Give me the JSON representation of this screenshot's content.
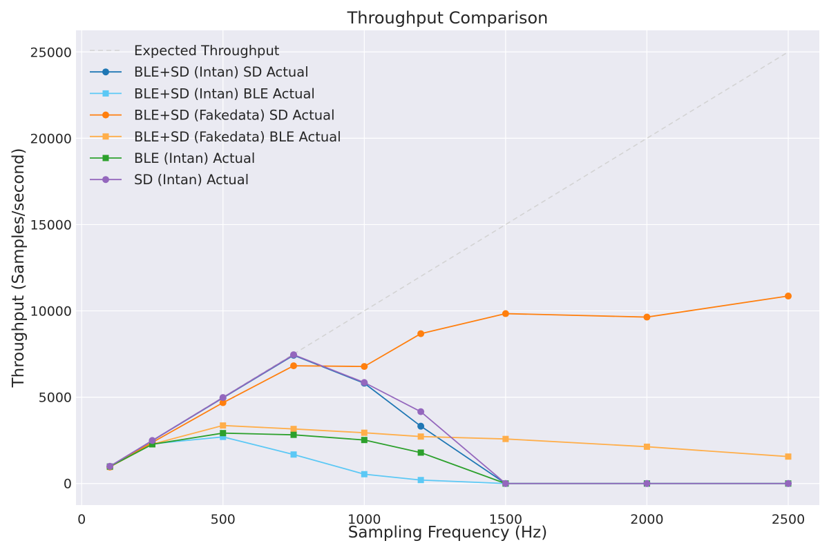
{
  "chart_data": {
    "type": "line",
    "title": "Throughput Comparison",
    "xlabel": "Sampling Frequency (Hz)",
    "ylabel": "Throughput (Samples/second)",
    "xlim": [
      -20,
      2610
    ],
    "ylim": [
      -1250,
      26250
    ],
    "xticks": [
      0,
      500,
      1000,
      1500,
      2000,
      2500
    ],
    "yticks": [
      0,
      5000,
      10000,
      15000,
      20000,
      25000
    ],
    "grid": true,
    "legend_position": "top-left",
    "x": [
      100,
      250,
      500,
      750,
      1000,
      1200,
      1500,
      2000,
      2500
    ],
    "series": [
      {
        "name": "Expected Throughput",
        "color": "#d3d3d3",
        "marker": "none",
        "dashed": true,
        "values": [
          100,
          250,
          500,
          750,
          1000,
          1200,
          1500,
          2000,
          2500
        ],
        "y": [
          1000,
          2500,
          5000,
          7500,
          10000,
          12000,
          15000,
          20000,
          25000
        ]
      },
      {
        "name": "BLE+SD (Intan) SD Actual",
        "color": "#1f77b4",
        "marker": "circle",
        "y": [
          990,
          2480,
          4960,
          7430,
          5810,
          3320,
          0,
          0,
          0
        ]
      },
      {
        "name": "BLE+SD (Intan) BLE Actual",
        "color": "#5bc8f5",
        "marker": "square",
        "y": [
          980,
          2300,
          2700,
          1680,
          540,
          200,
          0,
          0,
          0
        ]
      },
      {
        "name": "BLE+SD (Fakedata) SD Actual",
        "color": "#ff7f0e",
        "marker": "circle",
        "y": [
          950,
          2380,
          4680,
          6820,
          6780,
          8680,
          9840,
          9640,
          10860
        ]
      },
      {
        "name": "BLE+SD (Fakedata) BLE Actual",
        "color": "#ffae4a",
        "marker": "square",
        "y": [
          960,
          2280,
          3360,
          3160,
          2940,
          2720,
          2580,
          2130,
          1560
        ]
      },
      {
        "name": "BLE (Intan) Actual",
        "color": "#2ca02c",
        "marker": "square",
        "y": [
          980,
          2270,
          2920,
          2820,
          2520,
          1790,
          0,
          0,
          0
        ]
      },
      {
        "name": "SD (Intan) Actual",
        "color": "#9467bd",
        "marker": "circle",
        "y": [
          1000,
          2490,
          4980,
          7460,
          5850,
          4160,
          0,
          0,
          0
        ]
      }
    ]
  }
}
